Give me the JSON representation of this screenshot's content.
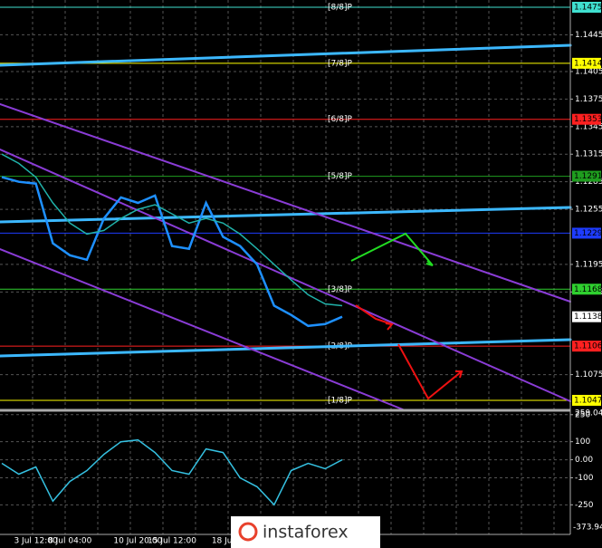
{
  "logo": "instaforex",
  "chart_data": [
    {
      "type": "line",
      "categories": [
        null,
        null,
        "3 Jul 12:00",
        null,
        "8 Jul 04:00",
        null,
        null,
        null,
        "10 Jul 20:00",
        null,
        "15 Jul 12:00",
        null,
        null,
        "18 Jul",
        null,
        null,
        null,
        null,
        null,
        null,
        null
      ],
      "series": [
        {
          "color": "#1e90ff",
          "values": [
            1.129,
            1.1285,
            1.1283,
            1.1218,
            1.1205,
            1.12,
            1.1245,
            1.1268,
            1.1262,
            1.127,
            1.1215,
            1.1212,
            1.1262,
            1.1225,
            1.1215,
            1.1195,
            1.115,
            1.114,
            1.1128,
            1.113,
            1.1138
          ]
        },
        {
          "color": "#20b2aa",
          "values": [
            1.1315,
            1.1305,
            1.129,
            1.1262,
            1.124,
            1.1228,
            1.1232,
            1.1245,
            1.1255,
            1.126,
            1.125,
            1.124,
            1.1245,
            1.124,
            1.1228,
            1.1212,
            1.1195,
            1.1178,
            1.1162,
            1.1152,
            1.115
          ]
        }
      ],
      "ylim": [
        1.10371,
        1.14829
      ],
      "yticks": [
        1.1445,
        1.1405,
        1.1375,
        1.1345,
        1.1315,
        1.1285,
        1.1255,
        1.1195,
        1.1165,
        1.1075
      ],
      "grid": true,
      "levels": [
        {
          "label": "[8/8]P",
          "value": 1.1475,
          "color": "#40e0d0"
        },
        {
          "label": "[7/8]P",
          "value": 1.1414,
          "color": "#ffff00"
        },
        {
          "label": "[6/8]P",
          "value": 1.1353,
          "color": "#ff2020"
        },
        {
          "label": "[5/8]P",
          "value": 1.1291,
          "color": "#1f9d1f"
        },
        {
          "value": 1.1229,
          "color": "#1e3cff"
        },
        {
          "label": "[3/8]P",
          "value": 1.1168,
          "color": "#2fd02f"
        },
        {
          "label": "[2/8]P",
          "value": 1.1106,
          "color": "#ff2020"
        },
        {
          "label": "[1/8]P",
          "value": 1.1047,
          "color": "#ffff00"
        }
      ],
      "last_price": 1.1138
    },
    {
      "type": "line",
      "series": [
        {
          "color": "#35c0e0",
          "values": [
            -20,
            -80,
            -40,
            -230,
            -120,
            -60,
            30,
            100,
            110,
            40,
            -60,
            -80,
            60,
            40,
            -100,
            -150,
            -250,
            -60,
            -20,
            -50,
            0
          ]
        }
      ],
      "ylim": [
        -373.947,
        259.041
      ],
      "yticks": [
        250,
        100,
        {
          "value": 0,
          "label": "0.00"
        },
        -100,
        -250
      ],
      "grid": true
    }
  ]
}
